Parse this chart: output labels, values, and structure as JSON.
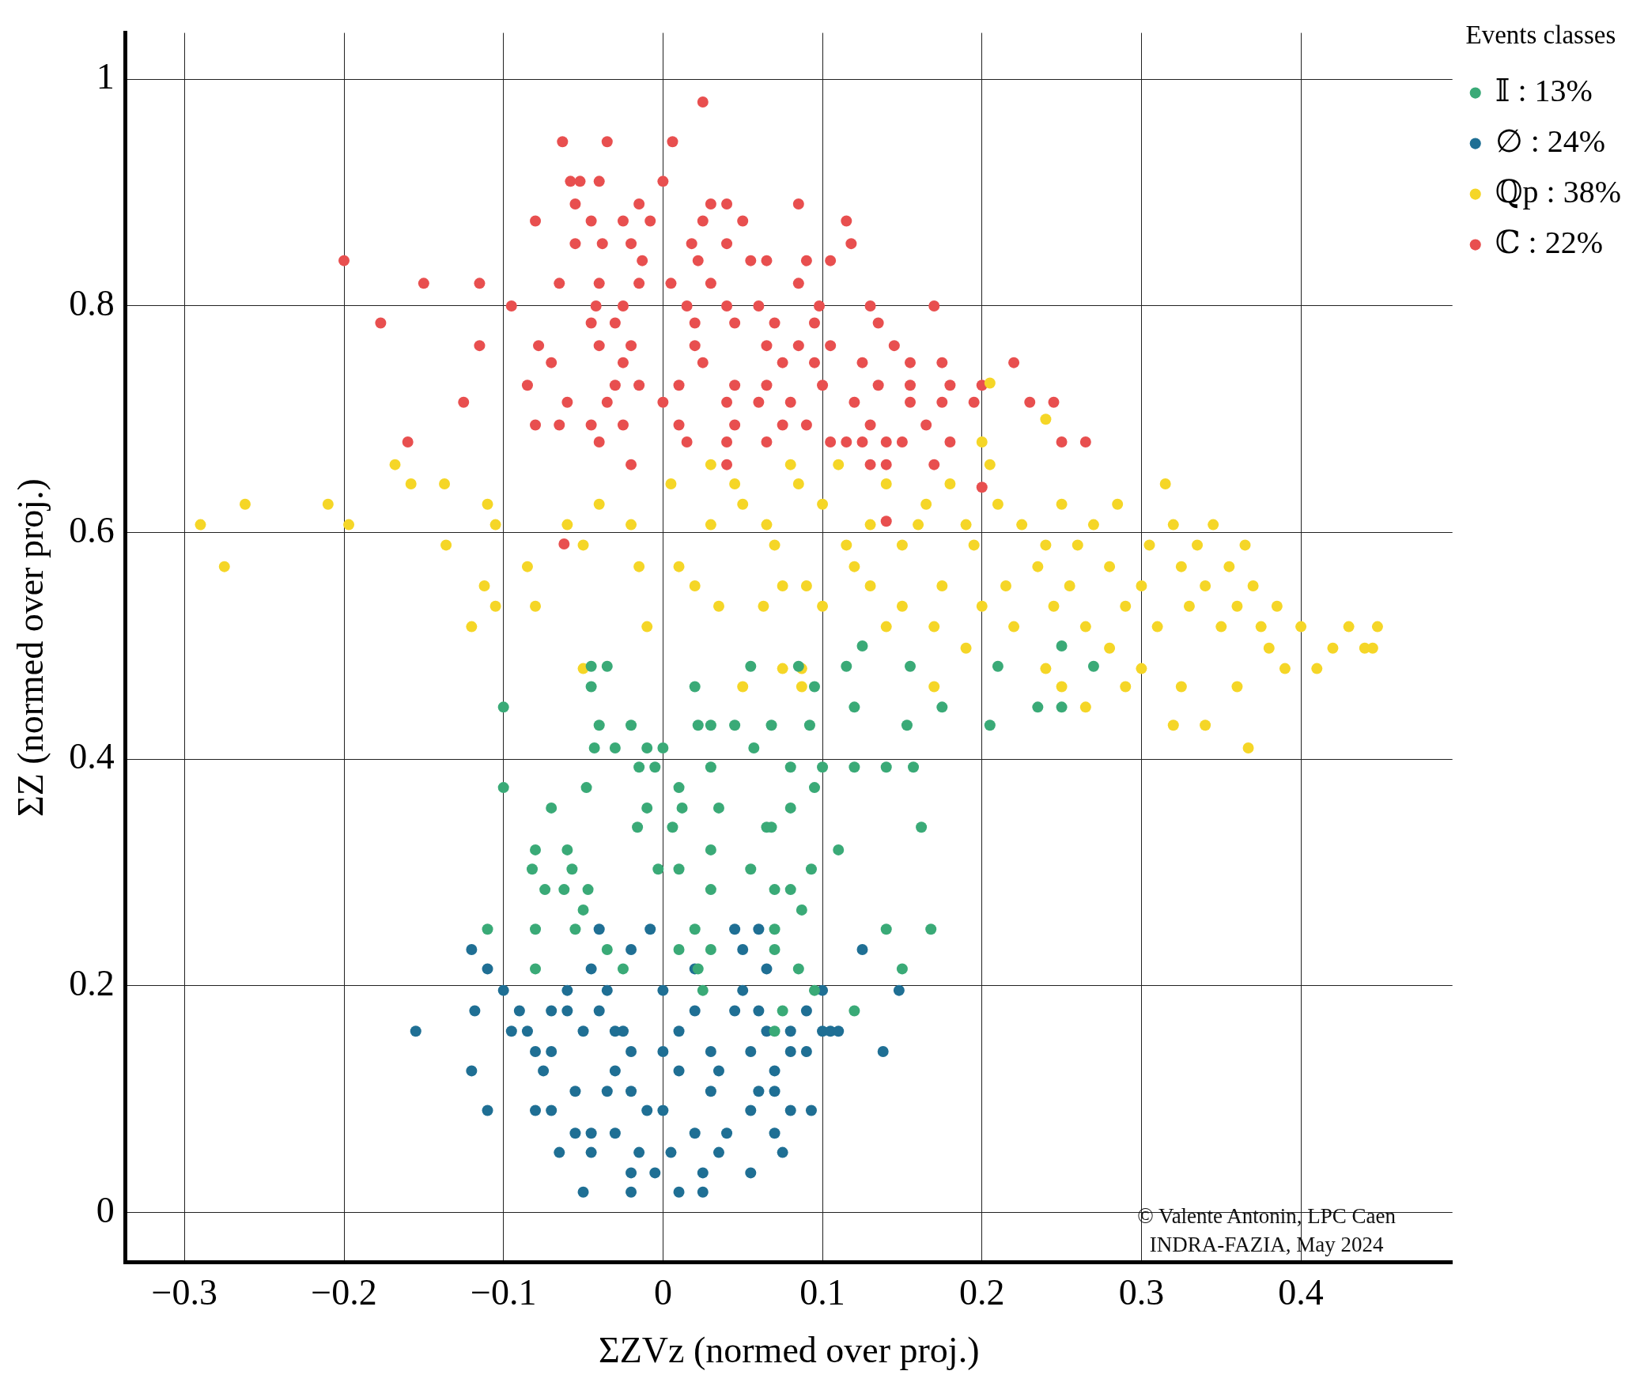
{
  "chart_data": {
    "type": "scatter",
    "xlabel": "ΣZVz (normed over proj.)",
    "ylabel": "ΣZ (normed over proj.)",
    "legend_title": "Events classes",
    "legend": "right",
    "grid": true,
    "marker": "circle",
    "xlim": [
      -0.337,
      0.495
    ],
    "xticks": [
      -0.3,
      -0.2,
      -0.1,
      0,
      0.1,
      0.2,
      0.3,
      0.4
    ],
    "ylim": [
      -0.044,
      1.041
    ],
    "yticks": [
      0,
      0.2,
      0.4,
      0.6,
      0.8,
      1
    ],
    "annotations": [
      "© Valente Antonin, LPC Caen",
      "INDRA-FAZIA, May 2024"
    ],
    "series": [
      {
        "name": "𝕀 : 13%",
        "color": "#3aaa77",
        "x": [
          -0.1,
          -0.045,
          -0.035,
          -0.045,
          0.055,
          0.02,
          0.085,
          0.095,
          0.115,
          0.155,
          0.125,
          0.21,
          0.235,
          0.25,
          0.25,
          0.27,
          0.205,
          0.175,
          0.153,
          0.12,
          0.092,
          0.068,
          0.045,
          0.03,
          0.022,
          -0.04,
          -0.02,
          -0.043,
          -0.03,
          -0.01,
          0,
          0.057,
          -0.015,
          -0.005,
          0.03,
          0.08,
          0.1,
          0.12,
          0.14,
          0.157,
          -0.1,
          -0.048,
          0.01,
          0.095,
          -0.07,
          -0.01,
          0.012,
          0.035,
          0.08,
          -0.016,
          0.006,
          0.065,
          0.068,
          0.162,
          -0.08,
          -0.06,
          0.03,
          0.11,
          -0.082,
          -0.057,
          -0.003,
          0.01,
          0.055,
          0.093,
          -0.074,
          -0.062,
          -0.047,
          0.03,
          0.07,
          0.08,
          -0.05,
          0.087,
          -0.11,
          -0.08,
          -0.055,
          0.02,
          0.07,
          0.14,
          0.168,
          -0.08,
          -0.025,
          0.022,
          0.085,
          0.15,
          -0.035,
          0.01,
          0.03,
          0.07,
          0.025,
          0.075,
          0.12,
          0.07,
          0.095
        ],
        "values": [
          0.446,
          0.482,
          0.482,
          0.464,
          0.482,
          0.464,
          0.482,
          0.464,
          0.482,
          0.482,
          0.5,
          0.482,
          0.446,
          0.446,
          0.5,
          0.482,
          0.43,
          0.446,
          0.43,
          0.446,
          0.43,
          0.43,
          0.43,
          0.43,
          0.43,
          0.43,
          0.43,
          0.41,
          0.41,
          0.41,
          0.41,
          0.41,
          0.393,
          0.393,
          0.393,
          0.393,
          0.393,
          0.393,
          0.393,
          0.393,
          0.375,
          0.375,
          0.375,
          0.375,
          0.357,
          0.357,
          0.357,
          0.357,
          0.357,
          0.34,
          0.34,
          0.34,
          0.34,
          0.34,
          0.32,
          0.32,
          0.32,
          0.32,
          0.303,
          0.303,
          0.303,
          0.303,
          0.303,
          0.303,
          0.285,
          0.285,
          0.285,
          0.285,
          0.285,
          0.285,
          0.267,
          0.267,
          0.25,
          0.25,
          0.25,
          0.25,
          0.25,
          0.25,
          0.25,
          0.215,
          0.215,
          0.215,
          0.215,
          0.215,
          0.232,
          0.232,
          0.232,
          0.232,
          0.196,
          0.178,
          0.178,
          0.16,
          0.196
        ]
      },
      {
        "name": "∅ : 24%",
        "color": "#1f6f94",
        "x": [
          -0.12,
          -0.11,
          -0.1,
          -0.118,
          -0.155,
          -0.12,
          -0.11,
          -0.09,
          -0.095,
          -0.085,
          -0.07,
          -0.06,
          -0.06,
          -0.05,
          -0.07,
          -0.08,
          -0.075,
          -0.08,
          -0.07,
          -0.055,
          -0.055,
          -0.045,
          -0.065,
          -0.045,
          -0.035,
          -0.03,
          -0.02,
          -0.025,
          -0.04,
          -0.035,
          -0.045,
          -0.04,
          -0.02,
          -0.008,
          0.02,
          0.05,
          0.065,
          0.045,
          0.06,
          0,
          0.02,
          0.01,
          0,
          0.01,
          0.03,
          0,
          0.02,
          0.005,
          -0.02,
          -0.005,
          0.025,
          0.055,
          -0.02,
          0.01,
          0.025,
          -0.05,
          0.04,
          0.055,
          0.06,
          0.07,
          0.055,
          0.065,
          0.06,
          0.045,
          0.05,
          0.07,
          0.075,
          0.07,
          0.08,
          0.08,
          0.08,
          0.093,
          0.1,
          0.105,
          0.11,
          0.1,
          0.09,
          0.125,
          0.138,
          0.148,
          0.09,
          -0.03,
          -0.02,
          -0.01,
          0.03,
          0.035,
          -0.015,
          0.035,
          -0.03
        ],
        "values": [
          0.232,
          0.215,
          0.196,
          0.178,
          0.16,
          0.125,
          0.09,
          0.178,
          0.16,
          0.16,
          0.178,
          0.196,
          0.178,
          0.16,
          0.142,
          0.142,
          0.125,
          0.09,
          0.09,
          0.107,
          0.07,
          0.07,
          0.053,
          0.053,
          0.107,
          0.125,
          0.142,
          0.16,
          0.178,
          0.196,
          0.215,
          0.25,
          0.232,
          0.25,
          0.215,
          0.232,
          0.215,
          0.25,
          0.25,
          0.196,
          0.178,
          0.16,
          0.142,
          0.125,
          0.107,
          0.09,
          0.07,
          0.053,
          0.035,
          0.035,
          0.035,
          0.035,
          0.018,
          0.018,
          0.018,
          0.018,
          0.07,
          0.09,
          0.107,
          0.125,
          0.142,
          0.16,
          0.178,
          0.178,
          0.196,
          0.07,
          0.053,
          0.107,
          0.16,
          0.09,
          0.142,
          0.09,
          0.16,
          0.16,
          0.16,
          0.196,
          0.178,
          0.232,
          0.142,
          0.196,
          0.142,
          0.16,
          0.107,
          0.09,
          0.142,
          0.125,
          0.053,
          0.053,
          0.07
        ]
      },
      {
        "name": "ℚp : 38%",
        "color": "#f5d627",
        "x": [
          -0.29,
          -0.262,
          -0.275,
          -0.21,
          -0.197,
          -0.168,
          -0.158,
          -0.137,
          -0.136,
          -0.11,
          -0.105,
          -0.112,
          -0.105,
          -0.12,
          -0.085,
          -0.08,
          -0.06,
          -0.04,
          -0.05,
          -0.02,
          -0.01,
          -0.015,
          0.005,
          0.01,
          0.02,
          0.03,
          0.035,
          0.045,
          0.05,
          0.063,
          0.065,
          0.07,
          0.075,
          0.085,
          0.1,
          0.1,
          0.11,
          0.115,
          0.13,
          0.14,
          0.15,
          0.15,
          0.16,
          0.165,
          0.175,
          0.18,
          0.19,
          0.195,
          0.2,
          0.205,
          0.21,
          0.215,
          0.22,
          0.225,
          0.235,
          0.24,
          0.245,
          0.25,
          0.255,
          0.26,
          0.265,
          0.27,
          0.28,
          0.285,
          0.29,
          0.3,
          0.305,
          0.31,
          0.315,
          0.32,
          0.325,
          0.33,
          0.335,
          0.34,
          0.345,
          0.35,
          0.355,
          0.36,
          0.365,
          0.37,
          0.375,
          0.38,
          0.385,
          0.39,
          0.4,
          0.41,
          0.42,
          0.43,
          0.44,
          0.448,
          0.445,
          0.32,
          0.34,
          0.367,
          0.325,
          0.36,
          0.29,
          0.265,
          0.25,
          0.24,
          0.3,
          0.28,
          0.19,
          0.17,
          0.13,
          0.075,
          0.087,
          0.05,
          0.087,
          -0.05,
          0.17,
          0.14,
          0.12,
          0.09,
          0.03,
          0.08,
          0.24,
          0.205,
          0.2
        ],
        "values": [
          0.607,
          0.625,
          0.57,
          0.625,
          0.607,
          0.66,
          0.643,
          0.643,
          0.589,
          0.625,
          0.607,
          0.553,
          0.535,
          0.517,
          0.57,
          0.535,
          0.607,
          0.625,
          0.589,
          0.607,
          0.517,
          0.57,
          0.643,
          0.57,
          0.553,
          0.607,
          0.535,
          0.643,
          0.625,
          0.535,
          0.607,
          0.589,
          0.553,
          0.643,
          0.625,
          0.535,
          0.66,
          0.589,
          0.607,
          0.643,
          0.589,
          0.535,
          0.607,
          0.625,
          0.553,
          0.643,
          0.607,
          0.589,
          0.535,
          0.66,
          0.625,
          0.553,
          0.517,
          0.607,
          0.57,
          0.589,
          0.535,
          0.625,
          0.553,
          0.589,
          0.517,
          0.607,
          0.57,
          0.625,
          0.535,
          0.553,
          0.589,
          0.517,
          0.643,
          0.607,
          0.57,
          0.535,
          0.589,
          0.553,
          0.607,
          0.517,
          0.57,
          0.535,
          0.589,
          0.553,
          0.517,
          0.498,
          0.535,
          0.48,
          0.517,
          0.48,
          0.498,
          0.517,
          0.498,
          0.517,
          0.498,
          0.43,
          0.43,
          0.41,
          0.464,
          0.464,
          0.464,
          0.446,
          0.464,
          0.48,
          0.48,
          0.498,
          0.498,
          0.464,
          0.553,
          0.48,
          0.48,
          0.464,
          0.464,
          0.48,
          0.517,
          0.517,
          0.57,
          0.553,
          0.66,
          0.66,
          0.7,
          0.732,
          0.68
        ]
      },
      {
        "name": "ℂ : 22%",
        "color": "#e84f4f",
        "x": [
          0.025,
          -0.063,
          -0.035,
          0.006,
          -0.058,
          -0.052,
          -0.04,
          0,
          -0.055,
          -0.015,
          0.03,
          0.04,
          0.085,
          -0.08,
          -0.045,
          -0.025,
          -0.008,
          0.025,
          0.05,
          0.115,
          -0.2,
          -0.055,
          -0.038,
          -0.02,
          0.018,
          0.04,
          0.118,
          -0.013,
          0.022,
          0.055,
          0.065,
          0.09,
          0.105,
          -0.15,
          -0.115,
          -0.065,
          -0.04,
          -0.015,
          0.005,
          0.03,
          0.085,
          -0.095,
          -0.042,
          -0.025,
          0.015,
          0.04,
          0.06,
          0.098,
          0.13,
          0.17,
          -0.177,
          -0.045,
          -0.03,
          0.02,
          0.045,
          0.07,
          0.095,
          0.135,
          -0.115,
          -0.078,
          -0.04,
          -0.02,
          0.02,
          0.065,
          0.085,
          0.105,
          0.145,
          -0.07,
          -0.025,
          0.025,
          0.075,
          0.095,
          0.125,
          0.155,
          0.175,
          0.22,
          -0.085,
          -0.03,
          -0.015,
          0.01,
          0.045,
          0.065,
          0.1,
          0.135,
          0.155,
          0.18,
          0.2,
          -0.125,
          -0.06,
          -0.035,
          0,
          0.04,
          0.06,
          0.08,
          0.12,
          0.155,
          0.175,
          0.195,
          0.23,
          0.245,
          -0.08,
          -0.065,
          -0.045,
          -0.025,
          0.01,
          0.045,
          0.075,
          0.09,
          0.13,
          0.165,
          -0.16,
          -0.04,
          0.015,
          0.04,
          0.065,
          0.105,
          0.115,
          0.125,
          0.14,
          0.15,
          0.18,
          0.25,
          0.265,
          -0.02,
          0.04,
          0.13,
          0.14,
          0.17,
          0.2,
          0.14,
          -0.062
        ],
        "values": [
          0.98,
          0.945,
          0.945,
          0.945,
          0.91,
          0.91,
          0.91,
          0.91,
          0.89,
          0.89,
          0.89,
          0.89,
          0.89,
          0.875,
          0.875,
          0.875,
          0.875,
          0.875,
          0.875,
          0.875,
          0.84,
          0.855,
          0.855,
          0.855,
          0.855,
          0.855,
          0.855,
          0.84,
          0.84,
          0.84,
          0.84,
          0.84,
          0.84,
          0.82,
          0.82,
          0.82,
          0.82,
          0.82,
          0.82,
          0.82,
          0.82,
          0.8,
          0.8,
          0.8,
          0.8,
          0.8,
          0.8,
          0.8,
          0.8,
          0.8,
          0.785,
          0.785,
          0.785,
          0.785,
          0.785,
          0.785,
          0.785,
          0.785,
          0.765,
          0.765,
          0.765,
          0.765,
          0.765,
          0.765,
          0.765,
          0.765,
          0.765,
          0.75,
          0.75,
          0.75,
          0.75,
          0.75,
          0.75,
          0.75,
          0.75,
          0.75,
          0.73,
          0.73,
          0.73,
          0.73,
          0.73,
          0.73,
          0.73,
          0.73,
          0.73,
          0.73,
          0.73,
          0.715,
          0.715,
          0.715,
          0.715,
          0.715,
          0.715,
          0.715,
          0.715,
          0.715,
          0.715,
          0.715,
          0.715,
          0.715,
          0.695,
          0.695,
          0.695,
          0.695,
          0.695,
          0.695,
          0.695,
          0.695,
          0.695,
          0.695,
          0.68,
          0.68,
          0.68,
          0.68,
          0.68,
          0.68,
          0.68,
          0.68,
          0.68,
          0.68,
          0.68,
          0.68,
          0.68,
          0.66,
          0.66,
          0.66,
          0.66,
          0.66,
          0.64,
          0.61,
          0.59
        ]
      }
    ]
  }
}
